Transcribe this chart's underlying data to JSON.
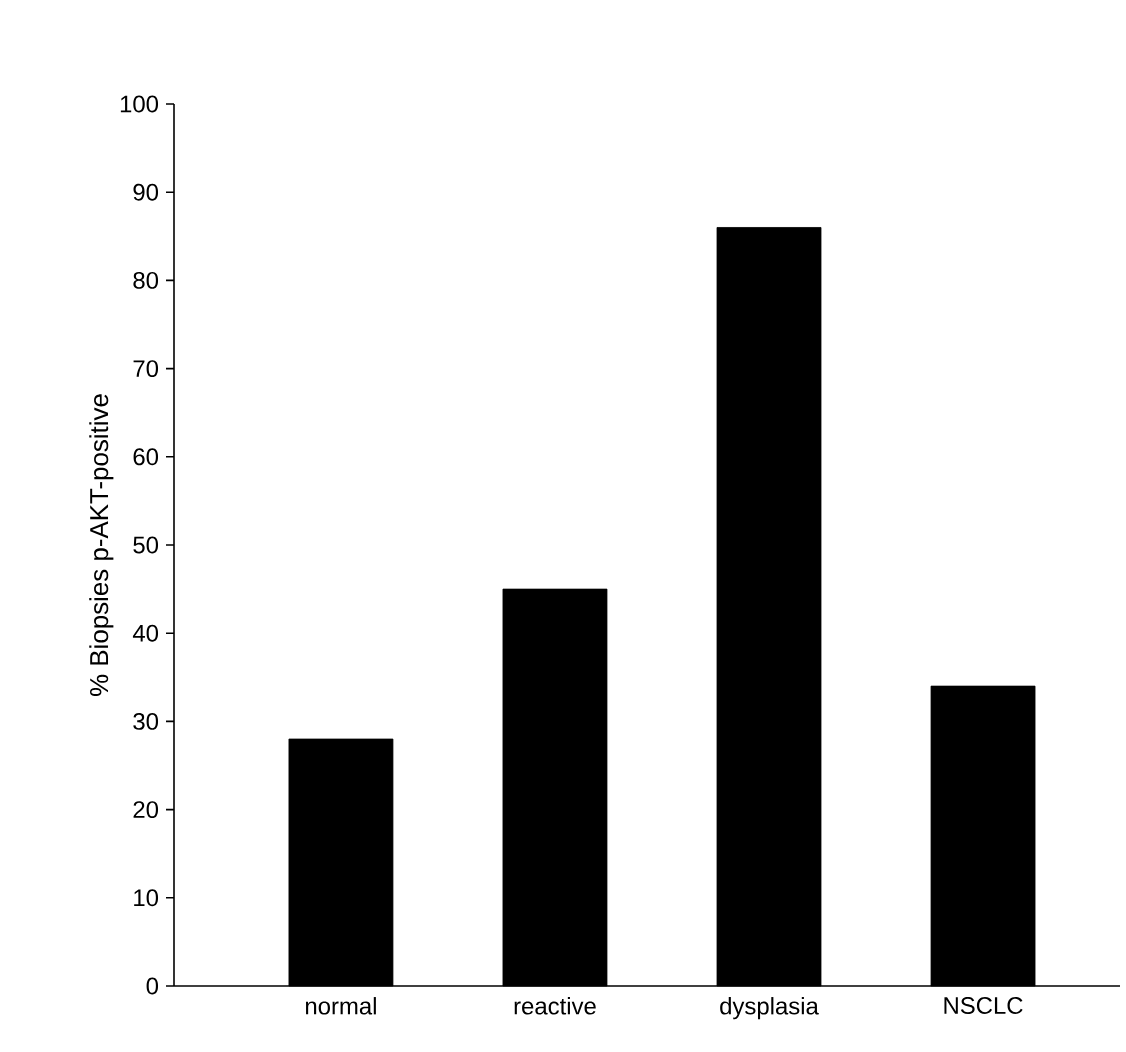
{
  "chart_data": {
    "type": "bar",
    "ylabel": "% Biopsies p-AKT-positive",
    "categories": [
      "normal",
      "reactive",
      "dysplasia",
      "NSCLC"
    ],
    "values": [
      28,
      45,
      86,
      34
    ],
    "color": "#000000",
    "ylim": [
      0,
      100
    ],
    "yticks": [
      0,
      10,
      20,
      30,
      40,
      50,
      60,
      70,
      80,
      90,
      100
    ]
  }
}
